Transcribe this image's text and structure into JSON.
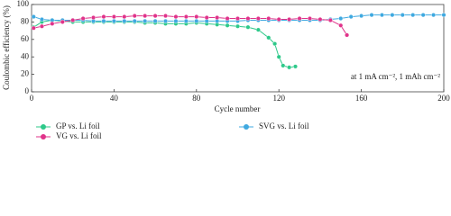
{
  "chart_data": {
    "type": "line",
    "x_label": "Cycle number",
    "y_label": "Coulombic efficiency (%)",
    "annotation": "at 1 mA cm⁻², 1 mAh cm⁻²",
    "xlim": [
      0,
      200
    ],
    "xticks": [
      0,
      40,
      80,
      120,
      160,
      200
    ],
    "ylim": [
      0,
      100
    ],
    "yticks": [
      0,
      20,
      40,
      60,
      80,
      100
    ],
    "series": [
      {
        "name": "GP vs. Li foil",
        "color": "#2ec98a",
        "x": [
          1,
          5,
          10,
          15,
          20,
          25,
          30,
          35,
          40,
          45,
          50,
          55,
          60,
          65,
          70,
          75,
          80,
          85,
          90,
          95,
          100,
          105,
          110,
          115,
          118,
          120,
          122,
          125,
          128
        ],
        "values": [
          74,
          80,
          82,
          81,
          80,
          80,
          80,
          80,
          80,
          80,
          80,
          79,
          79,
          78,
          78,
          78,
          79,
          78,
          77,
          76,
          75,
          74,
          71,
          62,
          55,
          40,
          30,
          28,
          29
        ]
      },
      {
        "name": "SVG vs. Li foil",
        "color": "#3fa9e0",
        "x": [
          1,
          5,
          10,
          15,
          20,
          25,
          30,
          35,
          40,
          45,
          50,
          55,
          60,
          65,
          70,
          75,
          80,
          85,
          90,
          95,
          100,
          105,
          110,
          115,
          120,
          125,
          130,
          135,
          140,
          145,
          150,
          155,
          160,
          165,
          170,
          175,
          180,
          185,
          190,
          195,
          200
        ],
        "values": [
          86,
          83,
          82,
          82,
          82,
          82,
          81,
          81,
          81,
          81,
          81,
          81,
          81,
          81,
          81,
          81,
          81,
          81,
          81,
          81,
          81,
          82,
          82,
          82,
          82,
          82,
          82,
          82,
          82,
          83,
          84,
          86,
          87,
          88,
          88,
          88,
          88,
          88,
          88,
          88,
          88
        ]
      },
      {
        "name": "VG vs. Li foil",
        "color": "#e0338a",
        "x": [
          1,
          5,
          10,
          15,
          20,
          25,
          30,
          35,
          40,
          45,
          50,
          55,
          60,
          65,
          70,
          75,
          80,
          85,
          90,
          95,
          100,
          105,
          110,
          115,
          120,
          125,
          130,
          135,
          140,
          145,
          150,
          153
        ],
        "values": [
          73,
          75,
          78,
          80,
          82,
          84,
          85,
          86,
          86,
          86,
          87,
          87,
          87,
          87,
          86,
          86,
          86,
          85,
          85,
          84,
          84,
          84,
          84,
          84,
          83,
          83,
          84,
          84,
          83,
          82,
          76,
          65
        ]
      }
    ]
  }
}
